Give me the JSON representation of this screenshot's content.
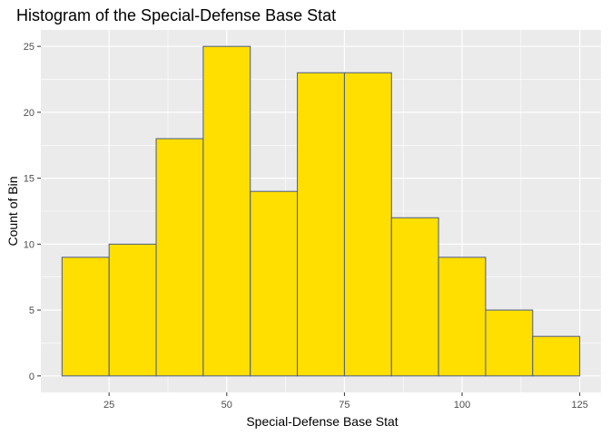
{
  "chart_data": {
    "type": "bar",
    "title": "Histogram of the Special-Defense Base Stat",
    "xlabel": "Special-Defense Base Stat",
    "ylabel": "Count of Bin",
    "bins": [
      {
        "start": 15,
        "end": 25,
        "count": 9
      },
      {
        "start": 25,
        "end": 35,
        "count": 10
      },
      {
        "start": 35,
        "end": 45,
        "count": 18
      },
      {
        "start": 45,
        "end": 55,
        "count": 25
      },
      {
        "start": 55,
        "end": 65,
        "count": 14
      },
      {
        "start": 65,
        "end": 75,
        "count": 23
      },
      {
        "start": 75,
        "end": 85,
        "count": 23
      },
      {
        "start": 85,
        "end": 95,
        "count": 12
      },
      {
        "start": 95,
        "end": 105,
        "count": 9
      },
      {
        "start": 105,
        "end": 115,
        "count": 5
      },
      {
        "start": 115,
        "end": 125,
        "count": 3
      }
    ],
    "x_ticks": [
      25,
      50,
      75,
      100,
      125
    ],
    "y_ticks": [
      0,
      5,
      10,
      15,
      20,
      25
    ],
    "xlim": [
      10.5,
      129.5
    ],
    "ylim": [
      -1.25,
      26.25
    ],
    "grid": true,
    "colors": {
      "bar_fill": "#FFDF00",
      "bar_stroke": "#4A5A8C",
      "panel_bg": "#EBEBEB",
      "grid_major": "#FFFFFF"
    }
  }
}
